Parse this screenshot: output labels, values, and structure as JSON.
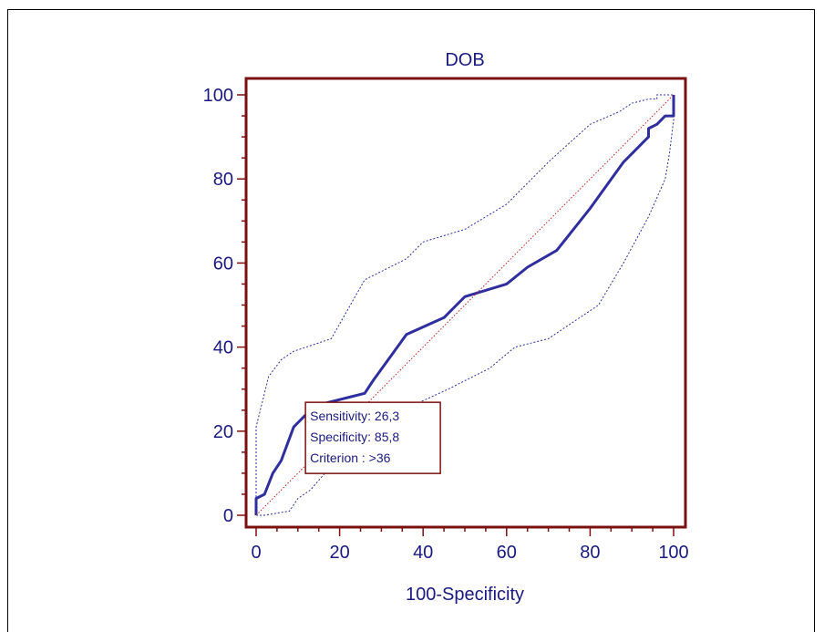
{
  "chart_data": {
    "type": "line",
    "title": "DOB",
    "xlabel": "100-Specificity",
    "ylabel": "",
    "xlim": [
      0,
      100
    ],
    "ylim": [
      0,
      100
    ],
    "x_ticks": [
      "0",
      "20",
      "40",
      "60",
      "80",
      "100"
    ],
    "y_ticks": [
      "0",
      "20",
      "40",
      "60",
      "80",
      "100"
    ],
    "grid": false,
    "colors": {
      "frame": "#7a1010",
      "roc": "#2e2e9e",
      "ci": "#2e2e9e",
      "diagonal": "#c02020",
      "text": "#1a1a7e"
    },
    "series": [
      {
        "style": "roc-curve",
        "points": [
          [
            0,
            0
          ],
          [
            0,
            4
          ],
          [
            2,
            5
          ],
          [
            4,
            10
          ],
          [
            6,
            13
          ],
          [
            9,
            21
          ],
          [
            14,
            26
          ],
          [
            26,
            29
          ],
          [
            28,
            32
          ],
          [
            36,
            43
          ],
          [
            45,
            47
          ],
          [
            50,
            52
          ],
          [
            60,
            55
          ],
          [
            65,
            59
          ],
          [
            72,
            63
          ],
          [
            80,
            73
          ],
          [
            88,
            84
          ],
          [
            94,
            90
          ],
          [
            94,
            92
          ],
          [
            96,
            93
          ],
          [
            98,
            95
          ],
          [
            100,
            95
          ],
          [
            100,
            100
          ]
        ]
      },
      {
        "style": "ci-upper",
        "points": [
          [
            0,
            0
          ],
          [
            0,
            21
          ],
          [
            3,
            33
          ],
          [
            6,
            37
          ],
          [
            9,
            39
          ],
          [
            18,
            42
          ],
          [
            26,
            56
          ],
          [
            36,
            61
          ],
          [
            40,
            65
          ],
          [
            50,
            68
          ],
          [
            60,
            74
          ],
          [
            70,
            84
          ],
          [
            80,
            93
          ],
          [
            87,
            96
          ],
          [
            90,
            98
          ],
          [
            94,
            99
          ],
          [
            96,
            99
          ],
          [
            96,
            100
          ],
          [
            100,
            100
          ]
        ]
      },
      {
        "style": "ci-lower",
        "points": [
          [
            0,
            0
          ],
          [
            2,
            0
          ],
          [
            8,
            1
          ],
          [
            10,
            4
          ],
          [
            13,
            6
          ],
          [
            20,
            14
          ],
          [
            27,
            19
          ],
          [
            35,
            25
          ],
          [
            46,
            30
          ],
          [
            56,
            35
          ],
          [
            62,
            40
          ],
          [
            70,
            42
          ],
          [
            82,
            50
          ],
          [
            88,
            60
          ],
          [
            94,
            71
          ],
          [
            98,
            80
          ],
          [
            99,
            86
          ],
          [
            100,
            94
          ],
          [
            100,
            100
          ]
        ]
      },
      {
        "style": "diagonal",
        "points": [
          [
            0,
            0
          ],
          [
            100,
            100
          ]
        ]
      }
    ],
    "annotation": {
      "at": [
        14,
        26
      ],
      "lines": [
        "Sensitivity: 26,3",
        "Specificity: 85,8",
        "Criterion : >36"
      ]
    }
  }
}
